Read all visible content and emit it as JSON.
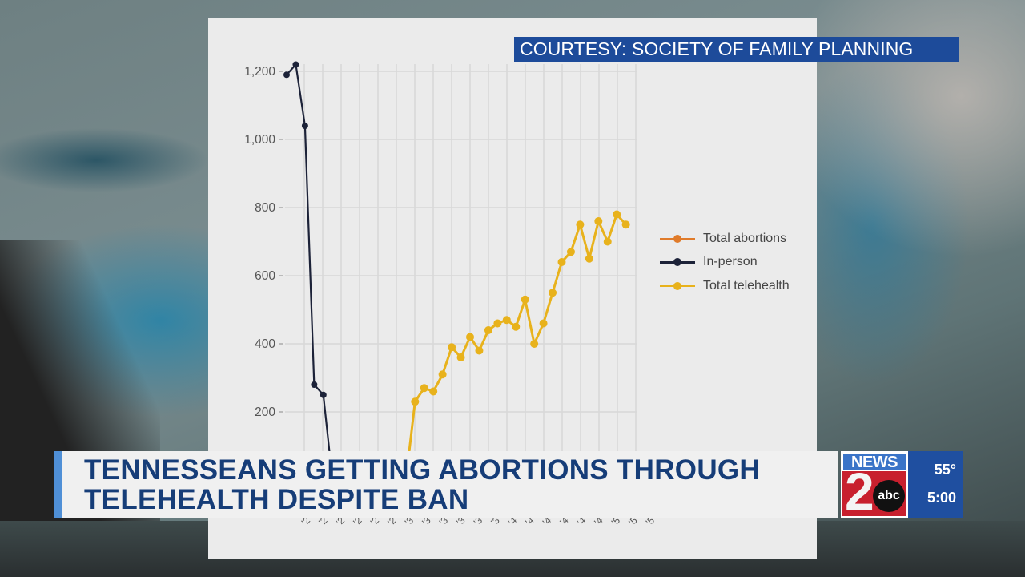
{
  "credit": {
    "text": "COURTESY: SOCIETY OF FAMILY PLANNING",
    "bg_color": "#1d4b9a"
  },
  "lower_third": {
    "headline_line1": "TENNESSEANS GETTING ABORTIONS THROUGH",
    "headline_line2": "TELEHEALTH DESPITE BAN",
    "headline_color": "#163d78",
    "accent_color": "#4f8fd6"
  },
  "station": {
    "logo_top": "NEWS",
    "logo_number": "2",
    "logo_network": "abc",
    "temperature": "55°",
    "time": "5:00"
  },
  "chart_data": {
    "type": "line",
    "title": "",
    "xlabel": "",
    "ylabel": "",
    "ylim": [
      0,
      1250
    ],
    "y_ticks": [
      "200",
      "400",
      "600",
      "800",
      "1,000",
      "1,200"
    ],
    "y_tick_values": [
      200,
      400,
      600,
      800,
      1000,
      1200
    ],
    "grid": true,
    "legend_position": "right",
    "legend": [
      {
        "name": "Total abortions",
        "color": "#e07b2a"
      },
      {
        "name": "In-person",
        "color": "#1c2238"
      },
      {
        "name": "Total telehealth",
        "color": "#e8b21c"
      }
    ],
    "x_note": "x-axis month labels are rotated and obscured by the lower-third banner",
    "series": [
      {
        "name": "In-person",
        "color": "#1c2238",
        "points": [
          {
            "i": 0,
            "y": 1190
          },
          {
            "i": 1,
            "y": 1220
          },
          {
            "i": 2,
            "y": 1040
          },
          {
            "i": 3,
            "y": 280
          },
          {
            "i": 4,
            "y": 250
          },
          {
            "i": 5,
            "y": 0
          }
        ]
      },
      {
        "name": "Total telehealth",
        "color": "#e8b21c",
        "points": [
          {
            "i": 13,
            "y": 0
          },
          {
            "i": 14,
            "y": 230
          },
          {
            "i": 15,
            "y": 270
          },
          {
            "i": 16,
            "y": 260
          },
          {
            "i": 17,
            "y": 310
          },
          {
            "i": 18,
            "y": 390
          },
          {
            "i": 19,
            "y": 360
          },
          {
            "i": 20,
            "y": 420
          },
          {
            "i": 21,
            "y": 380
          },
          {
            "i": 22,
            "y": 440
          },
          {
            "i": 23,
            "y": 460
          },
          {
            "i": 24,
            "y": 470
          },
          {
            "i": 25,
            "y": 450
          },
          {
            "i": 26,
            "y": 530
          },
          {
            "i": 27,
            "y": 400
          },
          {
            "i": 28,
            "y": 460
          },
          {
            "i": 29,
            "y": 550
          },
          {
            "i": 30,
            "y": 640
          },
          {
            "i": 31,
            "y": 670
          },
          {
            "i": 32,
            "y": 750
          },
          {
            "i": 33,
            "y": 650
          },
          {
            "i": 34,
            "y": 760
          },
          {
            "i": 35,
            "y": 700
          },
          {
            "i": 36,
            "y": 780
          },
          {
            "i": 37,
            "y": 750
          }
        ]
      },
      {
        "name": "Total abortions",
        "color": "#e07b2a",
        "points": []
      }
    ]
  }
}
